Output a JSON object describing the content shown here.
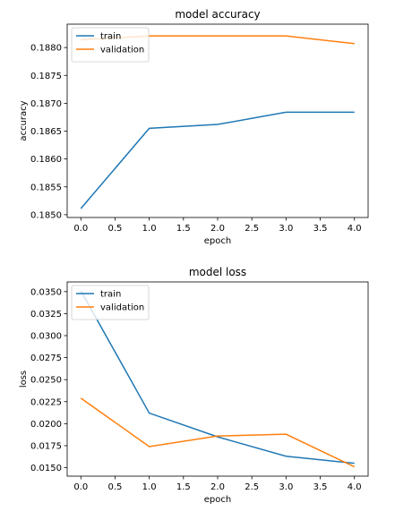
{
  "chart_data": [
    {
      "type": "line",
      "title": "model accuracy",
      "xlabel": "epoch",
      "ylabel": "accuracy",
      "xlim": [
        -0.2,
        4.2
      ],
      "ylim": [
        0.18495,
        0.18842
      ],
      "xticks": [
        0.0,
        0.5,
        1.0,
        1.5,
        2.0,
        2.5,
        3.0,
        3.5,
        4.0
      ],
      "xtick_labels": [
        "0.0",
        "0.5",
        "1.0",
        "1.5",
        "2.0",
        "2.5",
        "3.0",
        "3.5",
        "4.0"
      ],
      "yticks": [
        0.185,
        0.1855,
        0.186,
        0.1865,
        0.187,
        0.1875,
        0.188
      ],
      "ytick_labels": [
        "0.1850",
        "0.1855",
        "0.1860",
        "0.1865",
        "0.1870",
        "0.1875",
        "0.1880"
      ],
      "legend": "upper-left",
      "grid": false,
      "x": [
        0,
        1,
        2,
        3,
        4
      ],
      "series": [
        {
          "name": "train",
          "color": "#1f77b4",
          "values": [
            0.18511,
            0.18655,
            0.18662,
            0.18684,
            0.18684
          ]
        },
        {
          "name": "validation",
          "color": "#ff7f0e",
          "values": [
            0.18814,
            0.18821,
            0.18821,
            0.18821,
            0.18807
          ]
        }
      ]
    },
    {
      "type": "line",
      "title": "model loss",
      "xlabel": "epoch",
      "ylabel": "loss",
      "xlim": [
        -0.2,
        4.2
      ],
      "ylim": [
        0.01404,
        0.0361
      ],
      "xticks": [
        0.0,
        0.5,
        1.0,
        1.5,
        2.0,
        2.5,
        3.0,
        3.5,
        4.0
      ],
      "xtick_labels": [
        "0.0",
        "0.5",
        "1.0",
        "1.5",
        "2.0",
        "2.5",
        "3.0",
        "3.5",
        "4.0"
      ],
      "yticks": [
        0.015,
        0.0175,
        0.02,
        0.0225,
        0.025,
        0.0275,
        0.03,
        0.0325,
        0.035
      ],
      "ytick_labels": [
        "0.0150",
        "0.0175",
        "0.0200",
        "0.0225",
        "0.0250",
        "0.0275",
        "0.0300",
        "0.0325",
        "0.0350"
      ],
      "legend": "upper-left",
      "grid": false,
      "x": [
        0,
        1,
        2,
        3,
        4
      ],
      "series": [
        {
          "name": "train",
          "color": "#1f77b4",
          "values": [
            0.0351,
            0.0212,
            0.0185,
            0.0163,
            0.0155
          ]
        },
        {
          "name": "validation",
          "color": "#ff7f0e",
          "values": [
            0.0229,
            0.0174,
            0.0186,
            0.0188,
            0.0151
          ]
        }
      ]
    }
  ]
}
